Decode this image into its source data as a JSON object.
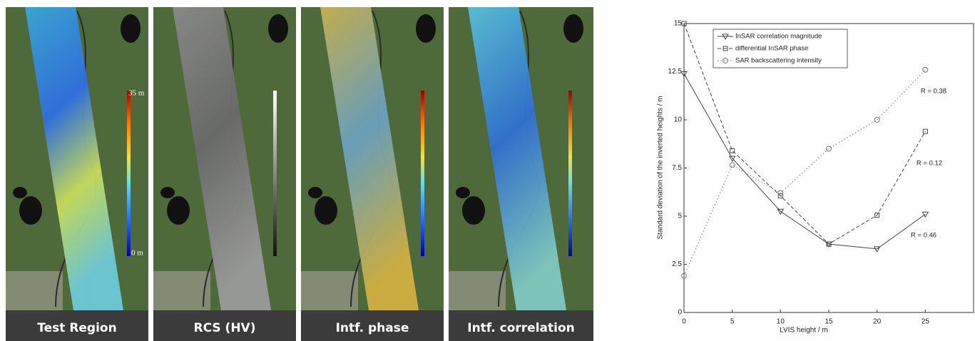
{
  "panels": [
    {
      "label": "Test Region",
      "colorbar_max": "35 m",
      "colorbar_min": "0 m"
    },
    {
      "label": "RCS (HV)"
    },
    {
      "label": "Intf. phase"
    },
    {
      "label": "Intf. correlation"
    }
  ],
  "chart_data": {
    "type": "line",
    "x_label": "LVIS height / m",
    "y_label": "Standard deviation of the inverted heights / m",
    "x": [
      0,
      5,
      10,
      15,
      20,
      25
    ],
    "series": [
      {
        "name": "InSAR correlation magnitude",
        "color": "#444444",
        "values": [
          12.4,
          8.0,
          5.25,
          3.55,
          3.3,
          5.1
        ]
      },
      {
        "name": "differential InSAR phase",
        "color": "#444444",
        "values": [
          15,
          8.4,
          6.05,
          3.55,
          5.05,
          9.4
        ]
      },
      {
        "name": "SAR backscattering intensity",
        "color": "#777777",
        "values": [
          1.9,
          7.65,
          6.2,
          8.5,
          10,
          12.6
        ]
      }
    ],
    "annotations": [
      "R = 0.38",
      "R = 0.12",
      "R = 0.46"
    ],
    "xlim": [
      0,
      30
    ],
    "xticks": [
      0,
      5,
      10,
      15,
      20,
      25
    ],
    "ylim": [
      0,
      15
    ],
    "yticks": [
      0,
      2.5,
      5,
      7.5,
      10,
      12.5,
      15
    ],
    "legend": "upper left"
  }
}
